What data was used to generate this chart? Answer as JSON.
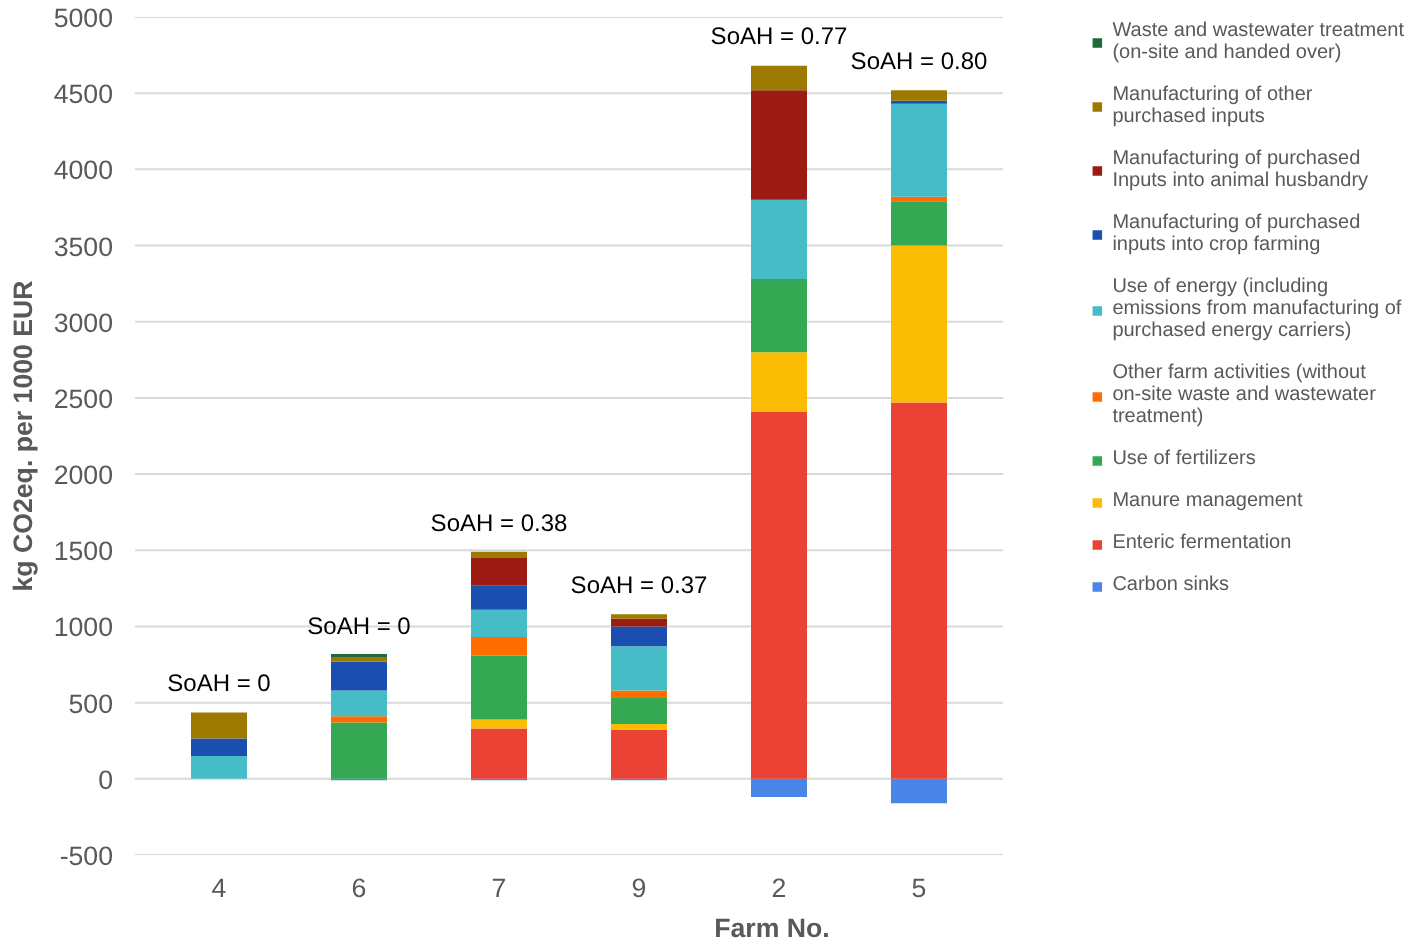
{
  "chart_data": {
    "type": "bar",
    "stacked": true,
    "xlabel": "Farm No.",
    "ylabel": "kg CO2eq. per 1000 EUR",
    "categories": [
      "4",
      "6",
      "7",
      "9",
      "2",
      "5"
    ],
    "ylim": [
      -500,
      5000
    ],
    "yticks": [
      -500,
      0,
      500,
      1000,
      1500,
      2000,
      2500,
      3000,
      3500,
      4000,
      4500,
      5000
    ],
    "grid": "y",
    "legend": "right",
    "series": [
      {
        "name": "Carbon sinks",
        "color": "#4a86e8",
        "values": [
          0,
          -10,
          -10,
          -10,
          -120,
          -160
        ]
      },
      {
        "name": "Enteric fermentation",
        "color": "#ea4335",
        "values": [
          0,
          0,
          330,
          320,
          2410,
          2470
        ]
      },
      {
        "name": "Manure management",
        "color": "#fbbc04",
        "values": [
          0,
          0,
          60,
          40,
          390,
          1030
        ]
      },
      {
        "name": "Use of fertilizers",
        "color": "#34a853",
        "values": [
          0,
          370,
          420,
          170,
          480,
          290
        ]
      },
      {
        "name": "Other farm activities (without on-site waste and wastewater treatment)",
        "color": "#ff6d01",
        "values": [
          0,
          40,
          120,
          50,
          0,
          30
        ]
      },
      {
        "name": "Use of energy (including emissions from manufacturing of purchased energy carriers)",
        "color": "#46bdc6",
        "values": [
          150,
          170,
          180,
          290,
          520,
          610
        ]
      },
      {
        "name": "Manufacturing of purchased inputs into crop farming",
        "color": "#1a4fb0",
        "values": [
          115,
          190,
          160,
          130,
          0,
          20
        ]
      },
      {
        "name": "Manufacturing of purchased Inputs into animal husbandry",
        "color": "#9c1c13",
        "values": [
          0,
          0,
          180,
          50,
          720,
          0
        ]
      },
      {
        "name": "Manufacturing of other purchased inputs",
        "color": "#9c7a00",
        "values": [
          170,
          30,
          40,
          30,
          160,
          70
        ]
      },
      {
        "name": "Waste and wastewater treatment (on-site and handed over)",
        "color": "#1e6b3a",
        "values": [
          0,
          20,
          0,
          0,
          0,
          0
        ]
      }
    ],
    "annotations": [
      {
        "text": "SoAH = 0",
        "x": "4",
        "y": 430
      },
      {
        "text": "SoAH = 0",
        "x": "6",
        "y": 805
      },
      {
        "text": "SoAH = 0.38",
        "x": "7",
        "y": 1480
      },
      {
        "text": "SoAH = 0.37",
        "x": "9",
        "y": 1075
      },
      {
        "text": "SoAH = 0.77",
        "x": "2",
        "y": 4680
      },
      {
        "text": "SoAH = 0.80",
        "x": "5",
        "y": 4515
      }
    ]
  }
}
